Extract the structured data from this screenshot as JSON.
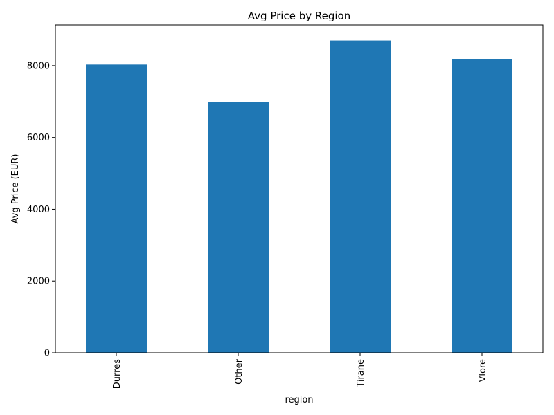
{
  "chart_data": {
    "type": "bar",
    "title": "Avg Price by Region",
    "xlabel": "region",
    "ylabel": "Avg Price (EUR)",
    "categories": [
      "Durres",
      "Other",
      "Tirane",
      "Vlore"
    ],
    "values": [
      8030,
      6980,
      8700,
      8180
    ],
    "ylim": [
      0,
      9135
    ],
    "yticks": [
      0,
      2000,
      4000,
      6000,
      8000
    ],
    "ytick_labels": [
      "0",
      "2000",
      "4000",
      "6000",
      "8000"
    ],
    "bar_color": "#1f77b4",
    "grid": false,
    "legend": "none"
  }
}
